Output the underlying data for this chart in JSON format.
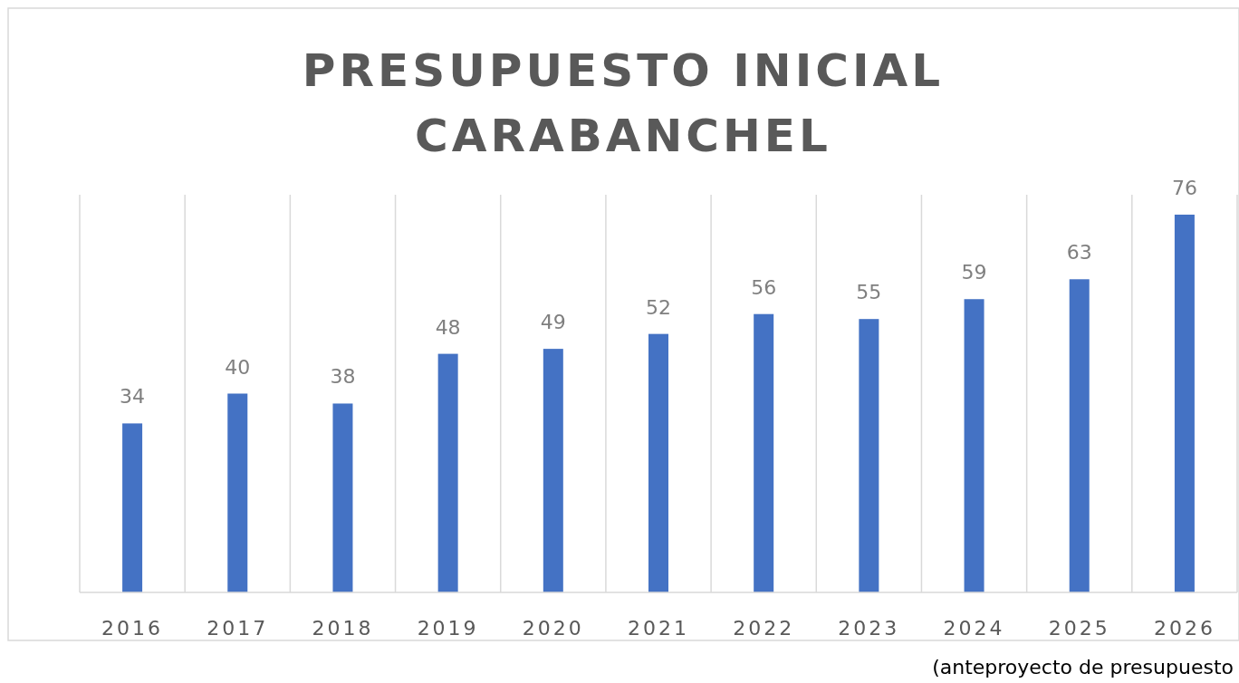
{
  "chart_data": {
    "type": "bar",
    "title": "PRESUPUESTO INICIAL CARABANCHEL",
    "categories": [
      "2016",
      "2017",
      "2018",
      "2019",
      "2020",
      "2021",
      "2022",
      "2023",
      "2024",
      "2025",
      "2026"
    ],
    "values": [
      34,
      40,
      38,
      48,
      49,
      52,
      56,
      55,
      59,
      63,
      76
    ],
    "color": "#4472c4",
    "ylim": [
      0,
      80
    ],
    "tick_labels": "x",
    "grid": "x",
    "data_labels": true,
    "annotations": [
      "(anteproyecto de presupuesto"
    ]
  }
}
